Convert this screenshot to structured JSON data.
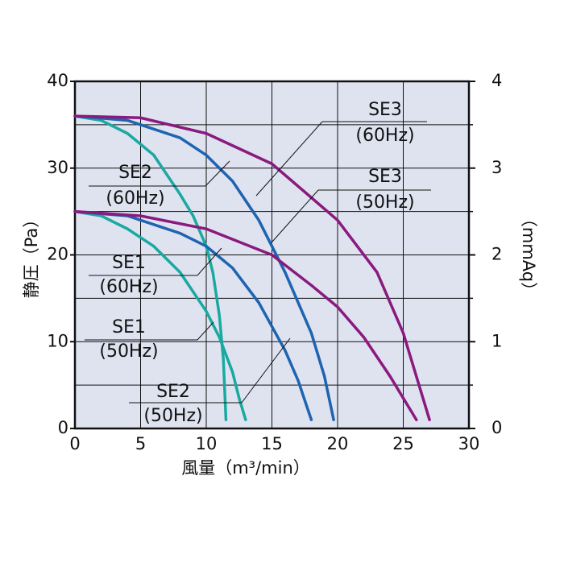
{
  "chart_data": {
    "type": "line",
    "y_label": "静圧（Pa）",
    "y2_label": "（mmAq）",
    "x_label": "風量（m³/min）",
    "xlim": [
      0,
      30
    ],
    "xticks": [
      0,
      5,
      10,
      15,
      20,
      25,
      30
    ],
    "ylim": [
      0,
      40
    ],
    "yticks": [
      0,
      10,
      20,
      30,
      40
    ],
    "y2lim": [
      0,
      4
    ],
    "y2ticks": [
      0,
      1,
      2,
      3,
      4
    ],
    "grid": true,
    "series": [
      {
        "name": "SE1",
        "freq": "(60Hz)",
        "color": "#1aa9a0",
        "x": [
          0,
          2,
          4,
          6,
          8,
          9,
          10,
          10.5,
          11,
          11.3,
          11.5
        ],
        "values": [
          36,
          35.5,
          34,
          31.5,
          27,
          24.5,
          21,
          18,
          13,
          8,
          1
        ]
      },
      {
        "name": "SE1",
        "freq": "(50Hz)",
        "color": "#1aa9a0",
        "x": [
          0,
          2,
          4,
          6,
          8,
          10,
          11,
          12,
          12.5,
          13
        ],
        "values": [
          25,
          24.5,
          23,
          21,
          18,
          13.5,
          10.5,
          6.5,
          3.5,
          1
        ]
      },
      {
        "name": "SE2",
        "freq": "(60Hz)",
        "color": "#1e64b0",
        "x": [
          0,
          4,
          8,
          10,
          12,
          14,
          16,
          18,
          19,
          19.7
        ],
        "values": [
          36,
          35.5,
          33.5,
          31.5,
          28.5,
          24,
          18,
          11,
          6,
          1
        ]
      },
      {
        "name": "SE2",
        "freq": "(50Hz)",
        "color": "#1e64b0",
        "x": [
          0,
          4,
          8,
          10,
          12,
          14,
          16,
          17,
          18
        ],
        "values": [
          25,
          24.5,
          22.5,
          21,
          18.5,
          14.5,
          9,
          5.5,
          1
        ]
      },
      {
        "name": "SE3",
        "freq": "(60Hz)",
        "color": "#8a1a7e",
        "x": [
          0,
          5,
          10,
          15,
          20,
          23,
          25,
          26,
          27
        ],
        "values": [
          36,
          35.8,
          34,
          30.5,
          24,
          18,
          11,
          6,
          1
        ]
      },
      {
        "name": "SE3",
        "freq": "(50Hz)",
        "color": "#8a1a7e",
        "x": [
          0,
          5,
          10,
          15,
          18,
          20,
          22,
          24,
          25,
          26
        ],
        "values": [
          25,
          24.5,
          23,
          20,
          16.5,
          14,
          10.5,
          6,
          3.5,
          1
        ]
      }
    ]
  }
}
